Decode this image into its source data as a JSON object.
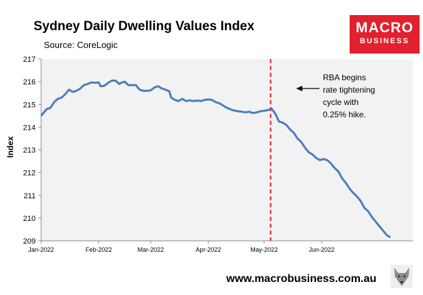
{
  "chart_data": {
    "type": "line",
    "title": "Sydney Daily Dwelling Values Index",
    "subtitle": "Source: CoreLogic",
    "xlabel": "",
    "ylabel": "Index",
    "ylim": [
      209,
      217
    ],
    "yticks": [
      "209",
      "210",
      "211",
      "212",
      "213",
      "214",
      "215",
      "216",
      "217"
    ],
    "xticks": [
      "Jan-2022",
      "Feb-2022",
      "Mar-2022",
      "Apr-2022",
      "May-2022",
      "Jun-2022"
    ],
    "xtick_days": [
      0,
      31,
      59,
      90,
      120,
      151
    ],
    "x_max_day": 200,
    "series": [
      {
        "name": "Sydney Daily Dwelling Values Index",
        "color": "#4a7ebb",
        "points": [
          [
            0,
            214.5
          ],
          [
            3,
            214.8
          ],
          [
            5,
            214.85
          ],
          [
            7,
            215.1
          ],
          [
            9,
            215.25
          ],
          [
            11,
            215.3
          ],
          [
            13,
            215.45
          ],
          [
            15,
            215.65
          ],
          [
            17,
            215.55
          ],
          [
            19,
            215.6
          ],
          [
            21,
            215.7
          ],
          [
            23,
            215.85
          ],
          [
            25,
            215.9
          ],
          [
            27,
            215.97
          ],
          [
            29,
            215.95
          ],
          [
            31,
            215.97
          ],
          [
            32,
            215.8
          ],
          [
            34,
            215.82
          ],
          [
            36,
            215.95
          ],
          [
            38,
            216.05
          ],
          [
            40,
            216.05
          ],
          [
            42,
            215.9
          ],
          [
            43,
            215.95
          ],
          [
            45,
            216.0
          ],
          [
            47,
            215.85
          ],
          [
            49,
            215.85
          ],
          [
            51,
            215.85
          ],
          [
            53,
            215.65
          ],
          [
            55,
            215.6
          ],
          [
            57,
            215.6
          ],
          [
            59,
            215.62
          ],
          [
            61,
            215.75
          ],
          [
            63,
            215.8
          ],
          [
            65,
            215.7
          ],
          [
            67,
            215.65
          ],
          [
            69,
            215.58
          ],
          [
            70,
            215.3
          ],
          [
            72,
            215.2
          ],
          [
            74,
            215.15
          ],
          [
            76,
            215.25
          ],
          [
            78,
            215.15
          ],
          [
            80,
            215.18
          ],
          [
            82,
            215.15
          ],
          [
            84,
            215.17
          ],
          [
            86,
            215.15
          ],
          [
            88,
            215.2
          ],
          [
            90,
            215.22
          ],
          [
            92,
            215.2
          ],
          [
            94,
            215.1
          ],
          [
            96,
            215.05
          ],
          [
            98,
            214.95
          ],
          [
            100,
            214.85
          ],
          [
            103,
            214.75
          ],
          [
            106,
            214.7
          ],
          [
            108,
            214.68
          ],
          [
            110,
            214.65
          ],
          [
            112,
            214.68
          ],
          [
            114,
            214.62
          ],
          [
            116,
            214.65
          ],
          [
            118,
            214.7
          ],
          [
            120,
            214.72
          ],
          [
            122,
            214.75
          ],
          [
            124,
            214.82
          ],
          [
            126,
            214.6
          ],
          [
            128,
            214.25
          ],
          [
            130,
            214.2
          ],
          [
            132,
            214.1
          ],
          [
            134,
            213.9
          ],
          [
            136,
            213.75
          ],
          [
            138,
            213.5
          ],
          [
            140,
            213.35
          ],
          [
            142,
            213.1
          ],
          [
            144,
            212.9
          ],
          [
            146,
            212.8
          ],
          [
            148,
            212.65
          ],
          [
            150,
            212.55
          ],
          [
            152,
            212.6
          ],
          [
            154,
            212.55
          ],
          [
            156,
            212.4
          ],
          [
            158,
            212.2
          ],
          [
            160,
            212.05
          ],
          [
            162,
            211.75
          ],
          [
            164,
            211.55
          ],
          [
            166,
            211.3
          ],
          [
            168,
            211.1
          ],
          [
            170,
            210.95
          ],
          [
            172,
            210.75
          ],
          [
            174,
            210.45
          ],
          [
            176,
            210.3
          ],
          [
            178,
            210.05
          ],
          [
            180,
            209.85
          ],
          [
            182,
            209.65
          ],
          [
            184,
            209.45
          ],
          [
            186,
            209.25
          ],
          [
            188,
            209.15
          ]
        ]
      }
    ],
    "event_line": {
      "day": 123.5,
      "color": "#e3202d"
    },
    "annotation": [
      "RBA begins",
      "rate tightening",
      "cycle with",
      "0.25% hike."
    ],
    "grid": false
  },
  "logo": {
    "line1": "MACRO",
    "line2": "BUSINESS"
  },
  "footer": {
    "url": "www.macrobusiness.com.au"
  }
}
